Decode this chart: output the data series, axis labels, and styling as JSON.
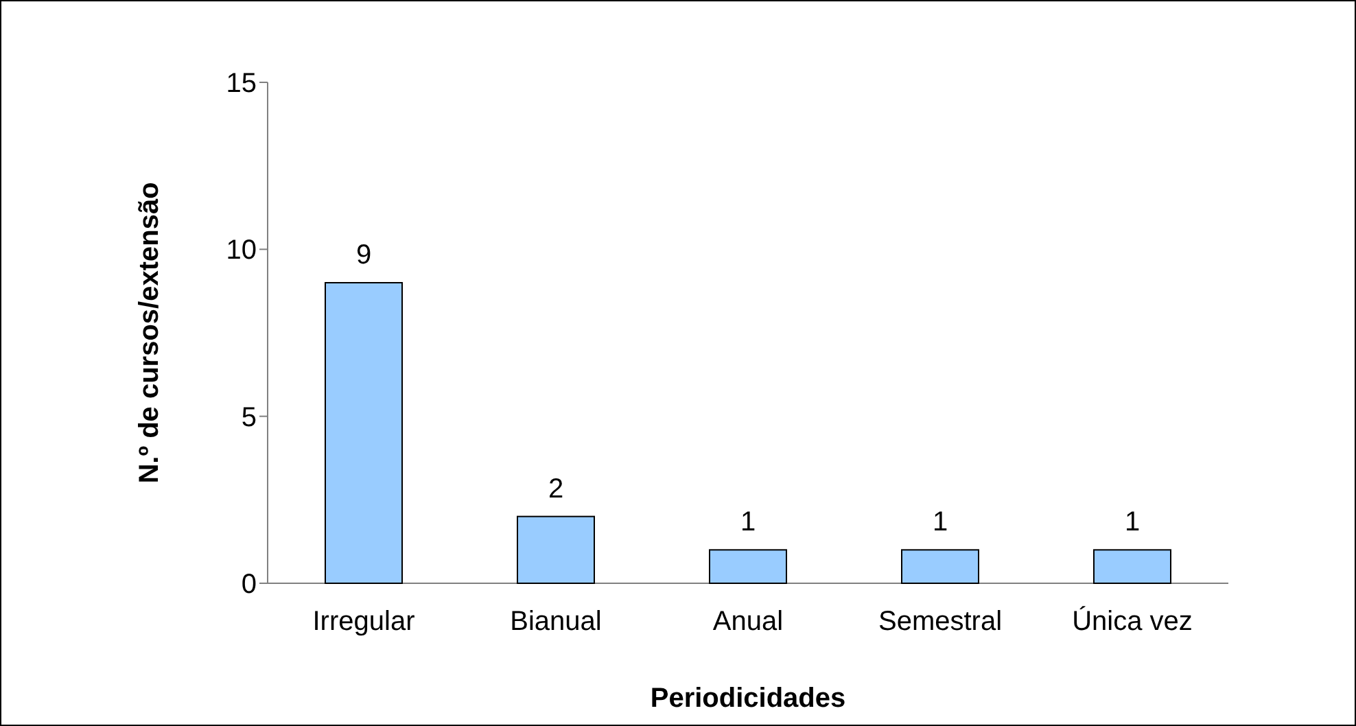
{
  "chart_data": {
    "type": "bar",
    "xlabel": "Periodicidades",
    "ylabel": "N.º de cursos/extensão",
    "categories": [
      "Irregular",
      "Bianual",
      "Anual",
      "Semestral",
      "Única vez"
    ],
    "values": [
      9,
      2,
      1,
      1,
      1
    ],
    "color": "#99ccff",
    "ylim": [
      0,
      15
    ],
    "yticks": [
      0,
      5,
      10,
      15
    ],
    "grid": false,
    "data_labels": true
  }
}
